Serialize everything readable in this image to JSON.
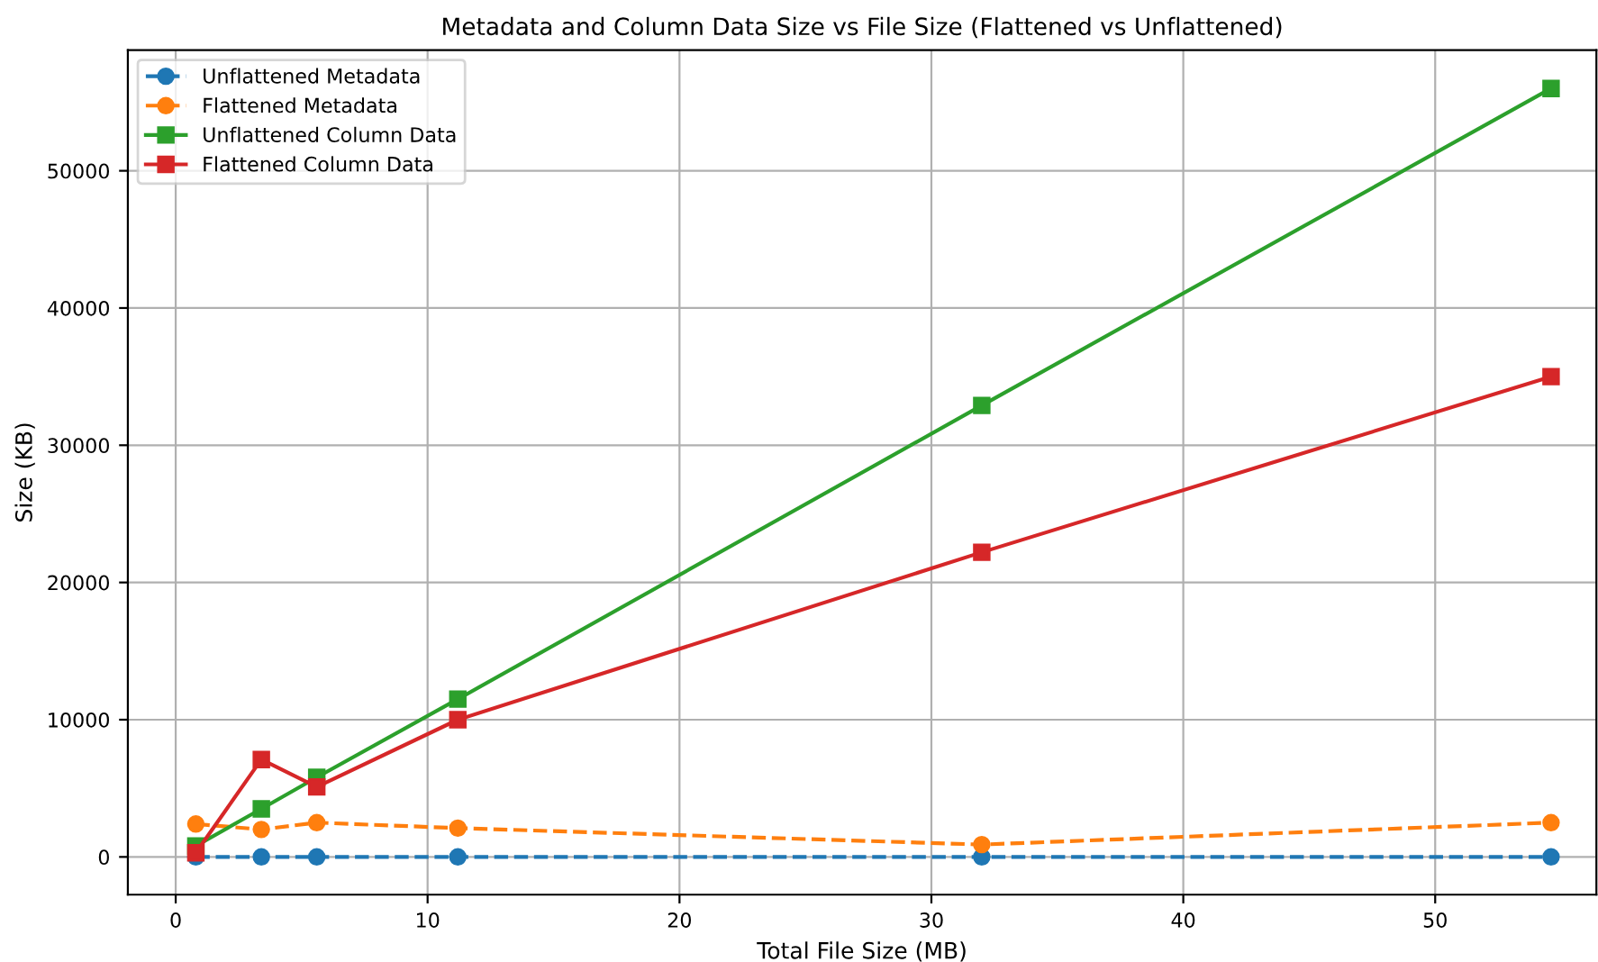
{
  "chart_data": {
    "type": "line",
    "title": "Metadata and Column Data Size vs File Size (Flattened vs Unflattened)",
    "xlabel": "Total File Size (MB)",
    "ylabel": "Size (KB)",
    "x": [
      0.8,
      3.4,
      5.6,
      11.2,
      32.0,
      54.6
    ],
    "series": [
      {
        "name": "Unflattened Metadata",
        "color": "#1f77b4",
        "marker": "circle",
        "line_style": "dashed",
        "values": [
          0,
          0,
          0,
          0,
          0,
          0
        ]
      },
      {
        "name": "Flattened Metadata",
        "color": "#ff7f0e",
        "marker": "circle",
        "line_style": "dashed",
        "values": [
          2400,
          2000,
          2500,
          2100,
          900,
          2500
        ]
      },
      {
        "name": "Unflattened Column Data",
        "color": "#2ca02c",
        "marker": "square",
        "line_style": "solid",
        "values": [
          800,
          3500,
          5800,
          11500,
          32900,
          56000
        ]
      },
      {
        "name": "Flattened Column Data",
        "color": "#d62728",
        "marker": "square",
        "line_style": "solid",
        "values": [
          300,
          7100,
          5100,
          10000,
          22200,
          35000
        ]
      }
    ],
    "xlim": [
      -1.9,
      56.4
    ],
    "ylim": [
      -2750,
      58800
    ],
    "xticks": [
      0,
      10,
      20,
      30,
      40,
      50
    ],
    "yticks": [
      0,
      10000,
      20000,
      30000,
      40000,
      50000
    ],
    "grid": true,
    "legend": "top left"
  }
}
